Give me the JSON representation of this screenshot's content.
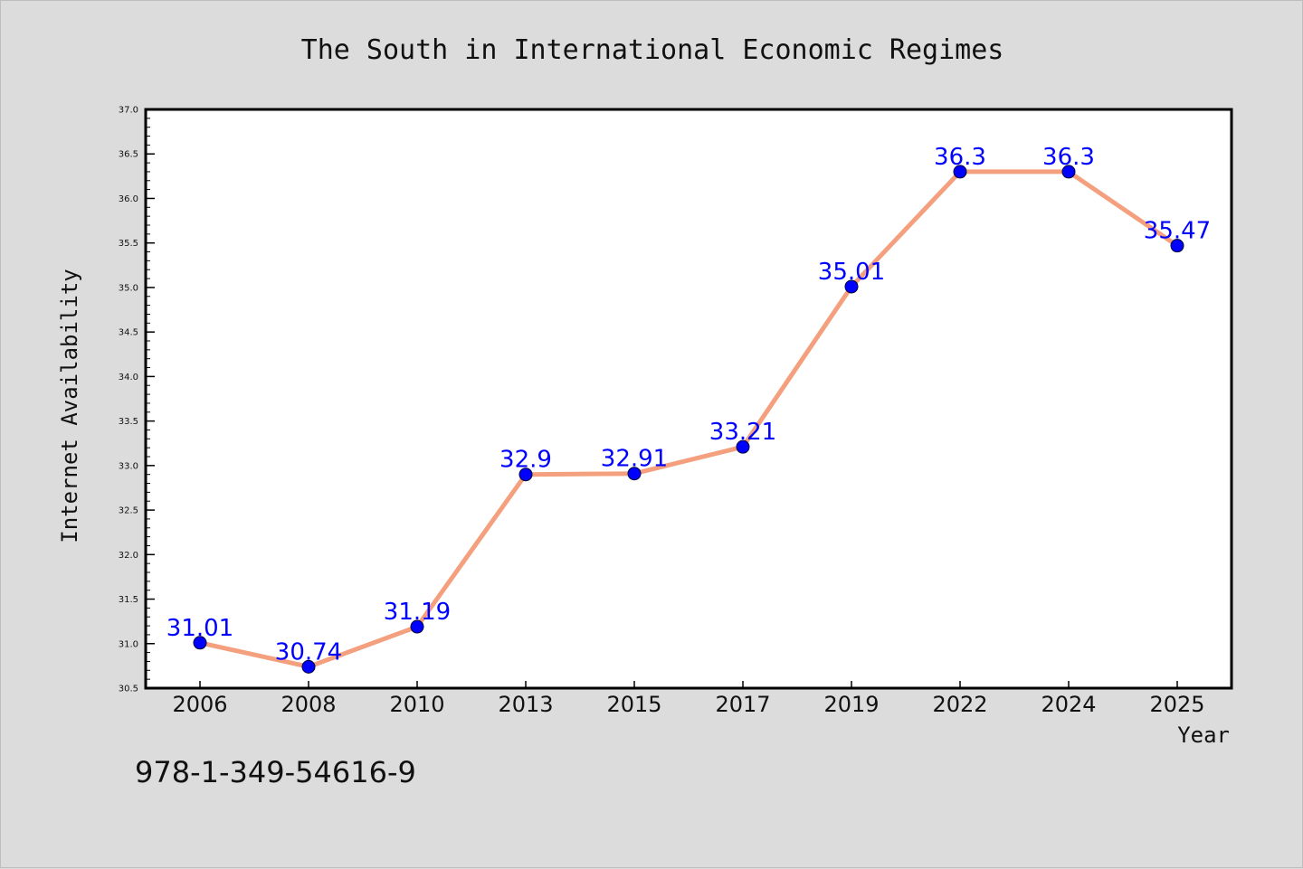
{
  "chart_data": {
    "type": "line",
    "title": "The South in International Economic Regimes",
    "xlabel": "Year",
    "ylabel": "Internet Availability",
    "categories": [
      "2006",
      "2008",
      "2010",
      "2013",
      "2015",
      "2017",
      "2019",
      "2022",
      "2024",
      "2025"
    ],
    "series": [
      {
        "values": [
          31.01,
          30.74,
          31.19,
          32.9,
          32.91,
          33.21,
          35.01,
          36.3,
          36.3,
          35.47
        ],
        "data_labels": [
          "31.01",
          "30.74",
          "31.19",
          "32.9",
          "32.91",
          "33.21",
          "35.01",
          "36.3",
          "36.3",
          "35.47"
        ]
      }
    ],
    "ylim": [
      30.5,
      37.0
    ],
    "yticks": [
      "30.5",
      "31.0",
      "31.5",
      "32.0",
      "32.5",
      "33.0",
      "33.5",
      "34.0",
      "34.5",
      "35.0",
      "35.5",
      "36.0",
      "36.5",
      "37.0"
    ],
    "grid": false,
    "legend": "none",
    "colors": {
      "line": "#f4a07e",
      "marker": "#0000ff",
      "data_label": "#0000ff",
      "background": "#dcdcdc",
      "plot_area": "#ffffff"
    }
  },
  "footer": {
    "isbn": "978-1-349-54616-9"
  }
}
